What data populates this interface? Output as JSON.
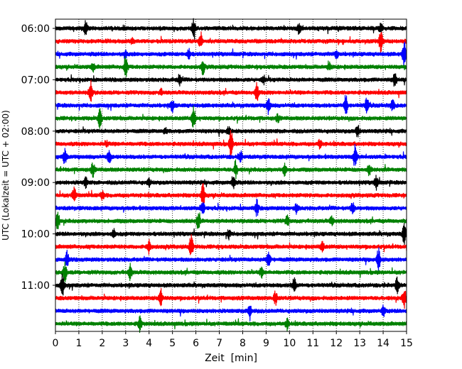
{
  "chart_data": {
    "type": "line",
    "title": "",
    "xlabel": "Zeit  [min]",
    "ylabel": "UTC (Lokalzeit = UTC + 02:00)",
    "xlim": [
      0,
      15
    ],
    "x_ticks": [
      0,
      1,
      2,
      3,
      4,
      5,
      6,
      7,
      8,
      9,
      10,
      11,
      12,
      13,
      14,
      15
    ],
    "y_tick_labels": [
      "06:00",
      "07:00",
      "08:00",
      "09:00",
      "10:00",
      "11:00"
    ],
    "y_tick_rows": [
      0,
      4,
      8,
      12,
      16,
      20
    ],
    "row_start": "06:00",
    "row_interval_minutes": 15,
    "row_count": 24,
    "vertical_grid": true,
    "grid_style": "dotted",
    "color_cycle": [
      "#000000",
      "#ff0000",
      "#0000ff",
      "#008000"
    ],
    "trace_events": [
      [
        [
          1.3,
          0.9
        ],
        [
          5.9,
          1.0
        ],
        [
          10.4,
          0.6
        ],
        [
          13.9,
          0.5
        ]
      ],
      [
        [
          6.2,
          1.0
        ],
        [
          13.9,
          1.3
        ],
        [
          3.3,
          0.4
        ]
      ],
      [
        [
          3.0,
          0.4
        ],
        [
          5.7,
          0.6
        ],
        [
          12.0,
          0.5
        ],
        [
          14.9,
          1.8
        ]
      ],
      [
        [
          3.0,
          1.2
        ],
        [
          6.3,
          0.8
        ],
        [
          1.6,
          0.5
        ],
        [
          11.7,
          0.4
        ]
      ],
      [
        [
          5.3,
          0.6
        ],
        [
          14.5,
          0.8
        ],
        [
          8.9,
          0.4
        ]
      ],
      [
        [
          1.5,
          1.4
        ],
        [
          8.6,
          1.0
        ],
        [
          4.5,
          0.3
        ]
      ],
      [
        [
          5.0,
          0.7
        ],
        [
          9.1,
          0.9
        ],
        [
          12.4,
          1.4
        ],
        [
          13.3,
          0.9
        ],
        [
          14.4,
          0.6
        ]
      ],
      [
        [
          1.9,
          1.1
        ],
        [
          5.9,
          1.3
        ],
        [
          9.5,
          0.4
        ]
      ],
      [
        [
          7.4,
          0.5
        ],
        [
          12.9,
          0.7
        ],
        [
          4.7,
          0.3
        ]
      ],
      [
        [
          7.5,
          1.6
        ],
        [
          11.3,
          0.5
        ],
        [
          2.2,
          0.3
        ]
      ],
      [
        [
          0.4,
          0.9
        ],
        [
          2.3,
          0.8
        ],
        [
          12.8,
          1.3
        ],
        [
          7.9,
          0.6
        ]
      ],
      [
        [
          1.6,
          0.8
        ],
        [
          7.7,
          1.0
        ],
        [
          9.8,
          0.7
        ],
        [
          13.4,
          0.6
        ]
      ],
      [
        [
          1.3,
          0.6
        ],
        [
          7.6,
          0.9
        ],
        [
          13.7,
          0.8
        ],
        [
          4.0,
          0.4
        ]
      ],
      [
        [
          0.8,
          1.1
        ],
        [
          6.3,
          1.5
        ],
        [
          2.0,
          0.5
        ]
      ],
      [
        [
          6.3,
          0.8
        ],
        [
          8.6,
          0.9
        ],
        [
          10.3,
          0.6
        ],
        [
          12.7,
          0.7
        ]
      ],
      [
        [
          0.1,
          1.0
        ],
        [
          6.1,
          0.9
        ],
        [
          9.9,
          0.6
        ],
        [
          11.8,
          0.5
        ]
      ],
      [
        [
          2.5,
          0.5
        ],
        [
          7.4,
          0.5
        ],
        [
          14.9,
          1.5
        ]
      ],
      [
        [
          4.0,
          0.8
        ],
        [
          5.8,
          1.4
        ],
        [
          11.4,
          0.6
        ]
      ],
      [
        [
          0.5,
          0.9
        ],
        [
          9.1,
          1.1
        ],
        [
          13.8,
          1.3
        ]
      ],
      [
        [
          0.4,
          1.2
        ],
        [
          3.2,
          0.9
        ],
        [
          8.8,
          0.5
        ]
      ],
      [
        [
          0.3,
          1.3
        ],
        [
          10.2,
          0.9
        ],
        [
          14.6,
          0.9
        ]
      ],
      [
        [
          4.5,
          1.1
        ],
        [
          9.4,
          0.8
        ],
        [
          14.9,
          1.1
        ]
      ],
      [
        [
          8.3,
          1.0
        ],
        [
          14.0,
          0.6
        ]
      ],
      [
        [
          3.6,
          0.9
        ],
        [
          9.9,
          0.6
        ]
      ]
    ]
  }
}
